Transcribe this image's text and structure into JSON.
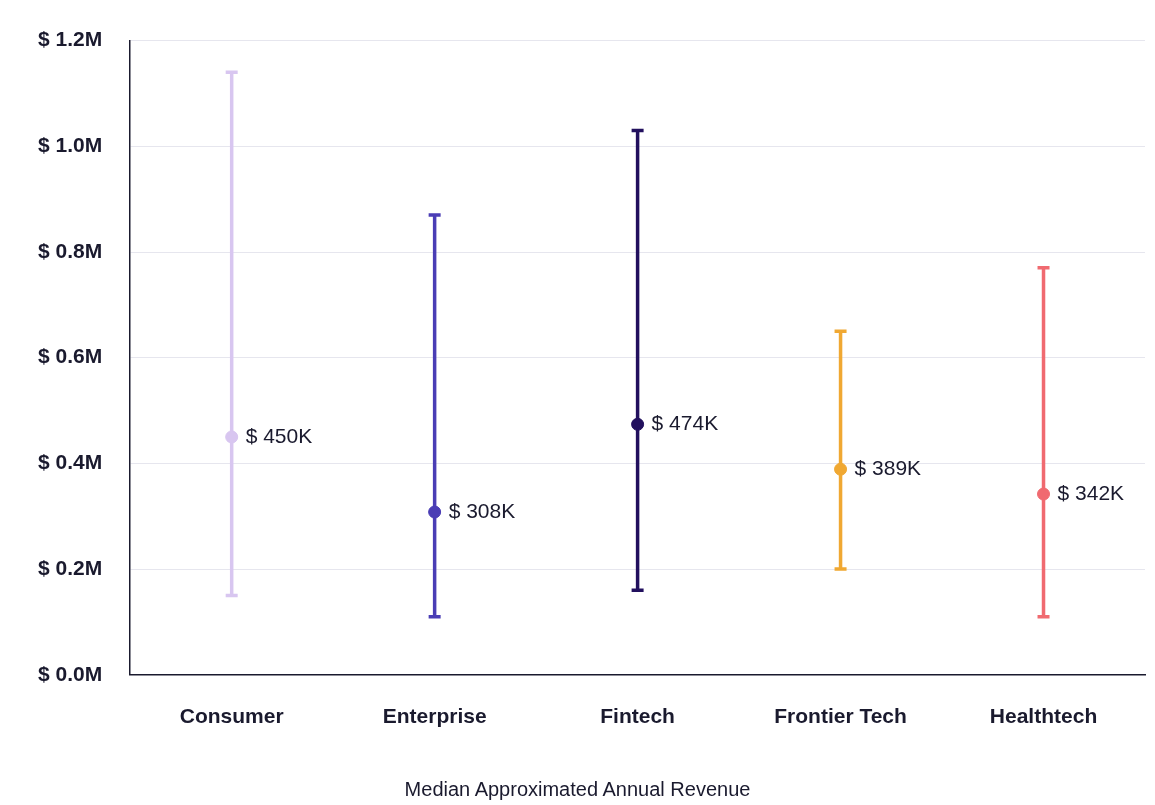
{
  "chart_data": {
    "type": "scatter",
    "xlabel": "Median Approximated Annual Revenue",
    "categories": [
      "Consumer",
      "Enterprise",
      "Fintech",
      "Frontier Tech",
      "Healthtech"
    ],
    "values": [
      450000,
      308000,
      474000,
      389000,
      342000
    ],
    "colors": [
      "#d8c6f0",
      "#4a3db5",
      "#22105e",
      "#f0a832",
      "#f06a70"
    ],
    "errors": [
      [
        150000,
        1140000
      ],
      [
        110000,
        870000
      ],
      [
        160000,
        1030000
      ],
      [
        200000,
        650000
      ],
      [
        110000,
        770000
      ]
    ],
    "value_labels": [
      "$ 450K",
      "$ 308K",
      "$ 474K",
      "$ 389K",
      "$ 342K"
    ],
    "ylim": [
      0,
      1200000
    ],
    "yticks": [
      {
        "value": 0,
        "label": "$ 0.0M"
      },
      {
        "value": 200000,
        "label": "$ 0.2M"
      },
      {
        "value": 400000,
        "label": "$ 0.4M"
      },
      {
        "value": 600000,
        "label": "$ 0.6M"
      },
      {
        "value": 800000,
        "label": "$ 0.8M"
      },
      {
        "value": 1000000,
        "label": "$ 1.0M"
      },
      {
        "value": 1200000,
        "label": "$ 1.2M"
      }
    ],
    "grid": "y",
    "marker": "circle"
  }
}
